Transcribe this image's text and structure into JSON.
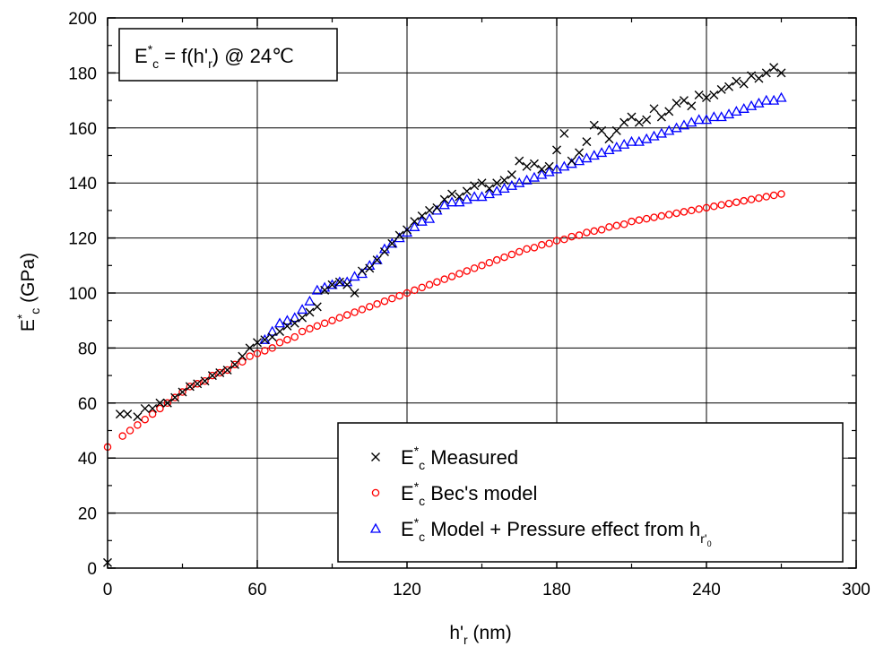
{
  "chart_data": {
    "type": "scatter",
    "annotation": {
      "main": "E",
      "sup": "*",
      "sub": "c",
      "rest": " = f(h'",
      "sub2": "r",
      "tail": ") @ 24℃"
    },
    "xlabel": {
      "main": "h'",
      "sub": "r",
      "tail": " (nm)"
    },
    "ylabel": {
      "main": "E",
      "sup": "*",
      "sub": "c",
      "tail": " (GPa)"
    },
    "xlim": [
      0,
      300
    ],
    "ylim": [
      0,
      200
    ],
    "x_ticks": [
      "0",
      "60",
      "120",
      "180",
      "240",
      "300"
    ],
    "y_ticks": [
      "0",
      "20",
      "40",
      "60",
      "80",
      "100",
      "120",
      "140",
      "160",
      "180",
      "200"
    ],
    "grid": true,
    "legend_position": "bottom-right",
    "series": [
      {
        "name": "E_c* Measured",
        "label": {
          "main": "E",
          "sup": "*",
          "sub": "c",
          "tail": " Measured"
        },
        "marker": "x",
        "color": "#000000",
        "points": [
          [
            0,
            2
          ],
          [
            5,
            56
          ],
          [
            8,
            56
          ],
          [
            12,
            55
          ],
          [
            15,
            58
          ],
          [
            18,
            58
          ],
          [
            21,
            60
          ],
          [
            24,
            60
          ],
          [
            27,
            62
          ],
          [
            30,
            64
          ],
          [
            33,
            66
          ],
          [
            36,
            67
          ],
          [
            39,
            68
          ],
          [
            42,
            70
          ],
          [
            45,
            71
          ],
          [
            48,
            72
          ],
          [
            51,
            74
          ],
          [
            54,
            77
          ],
          [
            57,
            80
          ],
          [
            60,
            82
          ],
          [
            63,
            83
          ],
          [
            66,
            84
          ],
          [
            69,
            86
          ],
          [
            72,
            88
          ],
          [
            75,
            89
          ],
          [
            78,
            91
          ],
          [
            81,
            93
          ],
          [
            84,
            95
          ],
          [
            87,
            101
          ],
          [
            90,
            103
          ],
          [
            93,
            104
          ],
          [
            96,
            103
          ],
          [
            99,
            100
          ],
          [
            102,
            108
          ],
          [
            105,
            109
          ],
          [
            108,
            112
          ],
          [
            111,
            115
          ],
          [
            114,
            118
          ],
          [
            117,
            121
          ],
          [
            120,
            123
          ],
          [
            123,
            126
          ],
          [
            126,
            128
          ],
          [
            129,
            130
          ],
          [
            132,
            131
          ],
          [
            135,
            134
          ],
          [
            138,
            136
          ],
          [
            141,
            135
          ],
          [
            144,
            137
          ],
          [
            147,
            139
          ],
          [
            150,
            140
          ],
          [
            153,
            138
          ],
          [
            156,
            140
          ],
          [
            159,
            141
          ],
          [
            162,
            143
          ],
          [
            165,
            148
          ],
          [
            168,
            146
          ],
          [
            171,
            147
          ],
          [
            174,
            145
          ],
          [
            177,
            146
          ],
          [
            180,
            152
          ],
          [
            183,
            158
          ],
          [
            186,
            148
          ],
          [
            189,
            151
          ],
          [
            192,
            155
          ],
          [
            195,
            161
          ],
          [
            198,
            159
          ],
          [
            201,
            156
          ],
          [
            204,
            159
          ],
          [
            207,
            162
          ],
          [
            210,
            164
          ],
          [
            213,
            162
          ],
          [
            216,
            163
          ],
          [
            219,
            167
          ],
          [
            222,
            164
          ],
          [
            225,
            166
          ],
          [
            228,
            169
          ],
          [
            231,
            170
          ],
          [
            234,
            168
          ],
          [
            237,
            172
          ],
          [
            240,
            171
          ],
          [
            243,
            172
          ],
          [
            246,
            174
          ],
          [
            249,
            175
          ],
          [
            252,
            177
          ],
          [
            255,
            176
          ],
          [
            258,
            179
          ],
          [
            261,
            178
          ],
          [
            264,
            180
          ],
          [
            267,
            182
          ],
          [
            270,
            180
          ]
        ]
      },
      {
        "name": "E_c* Bec's model",
        "label": {
          "main": "E",
          "sup": "*",
          "sub": "c",
          "tail": " Bec's model"
        },
        "marker": "circle",
        "color": "#ff0000",
        "points": [
          [
            0,
            44
          ],
          [
            6,
            48
          ],
          [
            9,
            50
          ],
          [
            12,
            52
          ],
          [
            15,
            54
          ],
          [
            18,
            56
          ],
          [
            21,
            58
          ],
          [
            24,
            60
          ],
          [
            27,
            62
          ],
          [
            30,
            64
          ],
          [
            33,
            66
          ],
          [
            36,
            67
          ],
          [
            39,
            68
          ],
          [
            42,
            70
          ],
          [
            45,
            71
          ],
          [
            48,
            72
          ],
          [
            51,
            74
          ],
          [
            54,
            75
          ],
          [
            57,
            77
          ],
          [
            60,
            78
          ],
          [
            63,
            79
          ],
          [
            66,
            80
          ],
          [
            69,
            82
          ],
          [
            72,
            83
          ],
          [
            75,
            84
          ],
          [
            78,
            86
          ],
          [
            81,
            87
          ],
          [
            84,
            88
          ],
          [
            87,
            89
          ],
          [
            90,
            90
          ],
          [
            93,
            91
          ],
          [
            96,
            92
          ],
          [
            99,
            93
          ],
          [
            102,
            94
          ],
          [
            105,
            95
          ],
          [
            108,
            96
          ],
          [
            111,
            97
          ],
          [
            114,
            98
          ],
          [
            117,
            99
          ],
          [
            120,
            100
          ],
          [
            123,
            101
          ],
          [
            126,
            102
          ],
          [
            129,
            103
          ],
          [
            132,
            104
          ],
          [
            135,
            105
          ],
          [
            138,
            106
          ],
          [
            141,
            107
          ],
          [
            144,
            108
          ],
          [
            147,
            109
          ],
          [
            150,
            110
          ],
          [
            153,
            111
          ],
          [
            156,
            112
          ],
          [
            159,
            113
          ],
          [
            162,
            114
          ],
          [
            165,
            115
          ],
          [
            168,
            116
          ],
          [
            171,
            116.5
          ],
          [
            174,
            117.5
          ],
          [
            177,
            118
          ],
          [
            180,
            119
          ],
          [
            183,
            119.5
          ],
          [
            186,
            120.5
          ],
          [
            189,
            121
          ],
          [
            192,
            122
          ],
          [
            195,
            122.5
          ],
          [
            198,
            123
          ],
          [
            201,
            124
          ],
          [
            204,
            124.5
          ],
          [
            207,
            125
          ],
          [
            210,
            126
          ],
          [
            213,
            126.5
          ],
          [
            216,
            127
          ],
          [
            219,
            127.5
          ],
          [
            222,
            128
          ],
          [
            225,
            128.5
          ],
          [
            228,
            129
          ],
          [
            231,
            129.5
          ],
          [
            234,
            130
          ],
          [
            237,
            130.5
          ],
          [
            240,
            131
          ],
          [
            243,
            131.5
          ],
          [
            246,
            132
          ],
          [
            249,
            132.5
          ],
          [
            252,
            133
          ],
          [
            255,
            133.5
          ],
          [
            258,
            134
          ],
          [
            261,
            134.5
          ],
          [
            264,
            135
          ],
          [
            267,
            135.5
          ],
          [
            270,
            136
          ]
        ]
      },
      {
        "name": "E_c* Model + Pressure effect from h_r'0",
        "label": {
          "main": "E",
          "sup": "*",
          "sub": "c",
          "tail": " Model + Pressure effect from h",
          "sub2": "r'",
          "sub3": "0"
        },
        "marker": "triangle",
        "color": "#0000ff",
        "points": [
          [
            63,
            83
          ],
          [
            66,
            86
          ],
          [
            69,
            89
          ],
          [
            72,
            90
          ],
          [
            75,
            91
          ],
          [
            78,
            94
          ],
          [
            81,
            97
          ],
          [
            84,
            101
          ],
          [
            87,
            102
          ],
          [
            90,
            103
          ],
          [
            93,
            104
          ],
          [
            96,
            104
          ],
          [
            99,
            106
          ],
          [
            102,
            107
          ],
          [
            105,
            110
          ],
          [
            108,
            112
          ],
          [
            111,
            116
          ],
          [
            114,
            118
          ],
          [
            117,
            120
          ],
          [
            120,
            122
          ],
          [
            123,
            124
          ],
          [
            126,
            126
          ],
          [
            129,
            127
          ],
          [
            132,
            130
          ],
          [
            135,
            132
          ],
          [
            138,
            133
          ],
          [
            141,
            133
          ],
          [
            144,
            134
          ],
          [
            147,
            135
          ],
          [
            150,
            135
          ],
          [
            153,
            136
          ],
          [
            156,
            137
          ],
          [
            159,
            138
          ],
          [
            162,
            139
          ],
          [
            165,
            140
          ],
          [
            168,
            141
          ],
          [
            171,
            142
          ],
          [
            174,
            143
          ],
          [
            177,
            144
          ],
          [
            180,
            145
          ],
          [
            183,
            146
          ],
          [
            186,
            147
          ],
          [
            189,
            148
          ],
          [
            192,
            149
          ],
          [
            195,
            150
          ],
          [
            198,
            151
          ],
          [
            201,
            152
          ],
          [
            204,
            153
          ],
          [
            207,
            154
          ],
          [
            210,
            155
          ],
          [
            213,
            155
          ],
          [
            216,
            156
          ],
          [
            219,
            157
          ],
          [
            222,
            158
          ],
          [
            225,
            159
          ],
          [
            228,
            160
          ],
          [
            231,
            161
          ],
          [
            234,
            162
          ],
          [
            237,
            163
          ],
          [
            240,
            163
          ],
          [
            243,
            164
          ],
          [
            246,
            164
          ],
          [
            249,
            165
          ],
          [
            252,
            166
          ],
          [
            255,
            167
          ],
          [
            258,
            168
          ],
          [
            261,
            169
          ],
          [
            264,
            170
          ],
          [
            267,
            170
          ],
          [
            270,
            171
          ]
        ]
      }
    ]
  },
  "colors": {
    "measured": "#000000",
    "bec_model": "#ff0000",
    "pressure_model": "#0000ff"
  }
}
